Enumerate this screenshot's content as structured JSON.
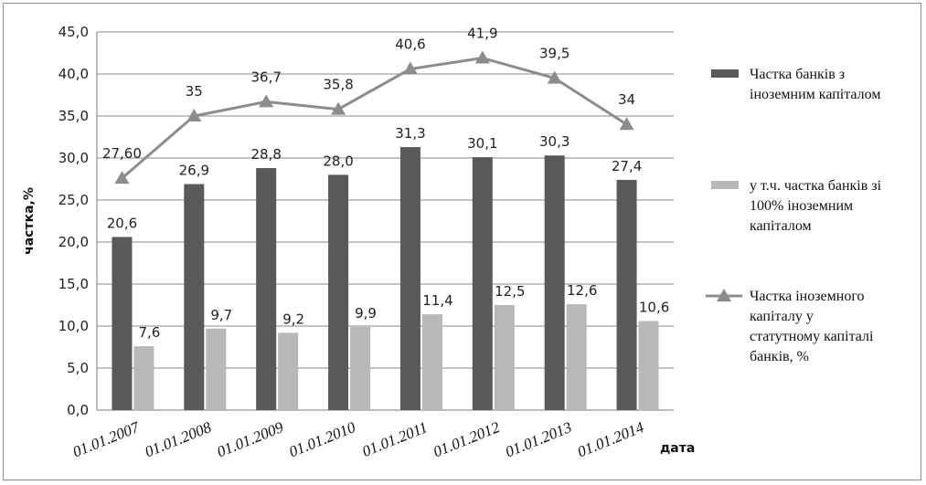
{
  "chart_data": {
    "type": "bar",
    "title": "",
    "xlabel": "дата",
    "ylabel": "частка,%",
    "ylim": [
      0,
      45
    ],
    "yticks": [
      "0,0",
      "5,0",
      "10,0",
      "15,0",
      "20,0",
      "25,0",
      "30,0",
      "35,0",
      "40,0",
      "45,0"
    ],
    "categories": [
      "01.01.2007",
      "01.01.2008",
      "01.01.2009",
      "01.01.2010",
      "01.01.2011",
      "01.01.2012",
      "01.01.2013",
      "01.01.2014"
    ],
    "grid": true,
    "legend_position": "right",
    "series": [
      {
        "name": "Частка банків з іноземним капіталом",
        "legend_lines": [
          "Частка банків з",
          "іноземним капіталом"
        ],
        "type": "bar",
        "color": "#595959",
        "values": [
          20.6,
          26.9,
          28.8,
          28.0,
          31.3,
          30.1,
          30.3,
          27.4
        ],
        "labels": [
          "20,6",
          "26,9",
          "28,8",
          "28,0",
          "31,3",
          "30,1",
          "30,3",
          "27,4"
        ]
      },
      {
        "name": "у т.ч. частка банків зі 100% іноземним капіталом",
        "legend_lines": [
          "у т.ч. частка банків зі",
          "100% іноземним",
          "капіталом"
        ],
        "type": "bar",
        "color": "#b8b8b8",
        "values": [
          7.6,
          9.7,
          9.2,
          9.9,
          11.4,
          12.5,
          12.6,
          10.6
        ],
        "labels": [
          "7,6",
          "9,7",
          "9,2",
          "9,9",
          "11,4",
          "12,5",
          "12,6",
          "10,6"
        ]
      },
      {
        "name": "Частка іноземного капіталу у статутному капіталі банків, %",
        "legend_lines": [
          "Частка іноземного",
          "капіталу у",
          "статутному капіталі",
          "банків, %"
        ],
        "type": "line",
        "marker": "triangle",
        "color": "#8c8c8c",
        "values": [
          27.6,
          35,
          36.7,
          35.8,
          40.6,
          41.9,
          39.5,
          34
        ],
        "labels": [
          "27,60",
          "35",
          "36,7",
          "35,8",
          "40,6",
          "41,9",
          "39,5",
          "34"
        ]
      }
    ]
  }
}
